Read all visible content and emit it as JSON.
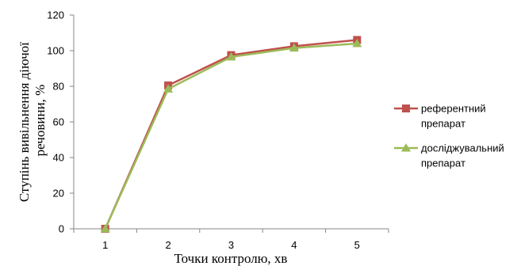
{
  "chart_data": {
    "type": "line",
    "title": "",
    "xlabel": "Точки контролю, хв",
    "ylabel_lines": [
      "Ступінь вивільнення діючої",
      "речовини, %"
    ],
    "categories": [
      "1",
      "2",
      "3",
      "4",
      "5"
    ],
    "ylim": [
      0,
      120
    ],
    "yticks": [
      "0",
      "20",
      "40",
      "60",
      "80",
      "100",
      "120"
    ],
    "grid": false,
    "legend_position": "right",
    "series": [
      {
        "name_lines": [
          "референтний",
          "препарат"
        ],
        "values": [
          0,
          80.5,
          97.5,
          102.5,
          106
        ],
        "color": "#c0504d",
        "marker": "square"
      },
      {
        "name_lines": [
          "досліджувальний",
          "препарат"
        ],
        "values": [
          0,
          78.5,
          96.5,
          101.5,
          104
        ],
        "color": "#9bbb59",
        "marker": "triangle"
      }
    ]
  }
}
